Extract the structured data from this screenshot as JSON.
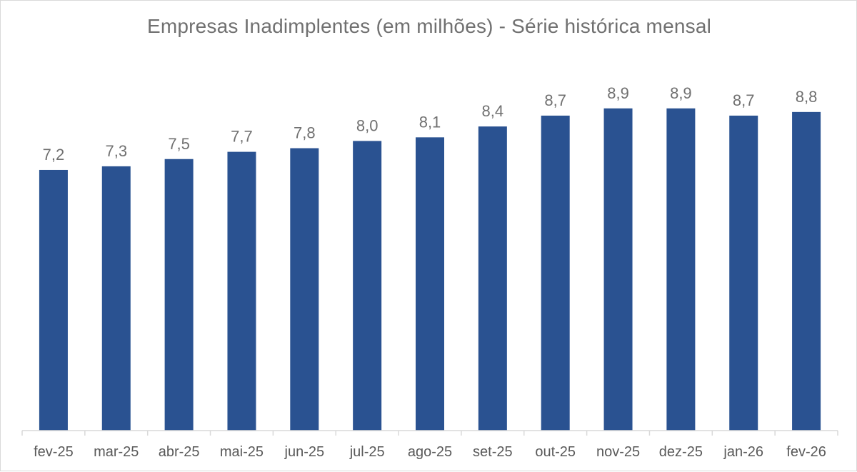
{
  "chart_data": {
    "type": "bar",
    "title": "Empresas Inadimplentes (em milhões) - Série histórica mensal",
    "categories": [
      "fev-25",
      "mar-25",
      "abr-25",
      "mai-25",
      "jun-25",
      "jul-25",
      "ago-25",
      "set-25",
      "out-25",
      "nov-25",
      "dez-25",
      "jan-26",
      "fev-26"
    ],
    "values": [
      7.2,
      7.3,
      7.5,
      7.7,
      7.8,
      8.0,
      8.1,
      8.4,
      8.7,
      8.9,
      8.9,
      8.7,
      8.8
    ],
    "data_labels": [
      "7,2",
      "7,3",
      "7,5",
      "7,7",
      "7,8",
      "8,0",
      "8,1",
      "8,4",
      "8,7",
      "8,9",
      "8,9",
      "8,7",
      "8,8"
    ],
    "xlabel": "",
    "ylabel": "",
    "ylim": [
      0,
      10.9
    ],
    "grid": false,
    "legend": "none",
    "bar_color": "#2a5291",
    "axis_color": "#d9d9d9"
  }
}
